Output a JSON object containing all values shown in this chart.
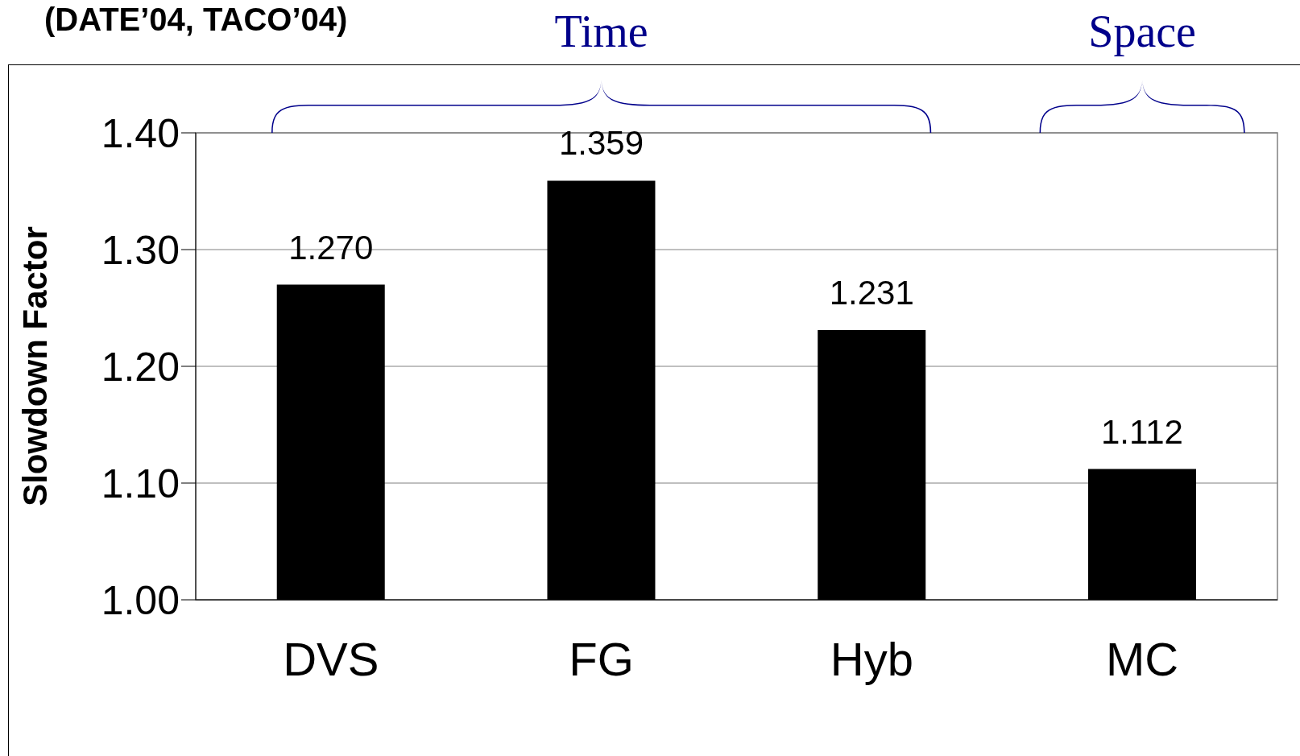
{
  "chart_data": {
    "type": "bar",
    "title": "(DATE’04, TACO’04)",
    "ylabel": "Slowdown Factor",
    "categories": [
      "DVS",
      "FG",
      "Hyb",
      "MC"
    ],
    "values": [
      1.27,
      1.359,
      1.231,
      1.112
    ],
    "color": "#000000",
    "value_labels": [
      "1.270",
      "1.359",
      "1.231",
      "1.112"
    ],
    "ylim": [
      1.0,
      1.4
    ],
    "yticks": [
      {
        "value": 1.0,
        "label": "1.00"
      },
      {
        "value": 1.1,
        "label": "1.10"
      },
      {
        "value": 1.2,
        "label": "1.20"
      },
      {
        "value": 1.3,
        "label": "1.30"
      },
      {
        "value": 1.4,
        "label": "1.40"
      }
    ],
    "grid": "y",
    "annotations": [
      "Time",
      "Space"
    ]
  }
}
